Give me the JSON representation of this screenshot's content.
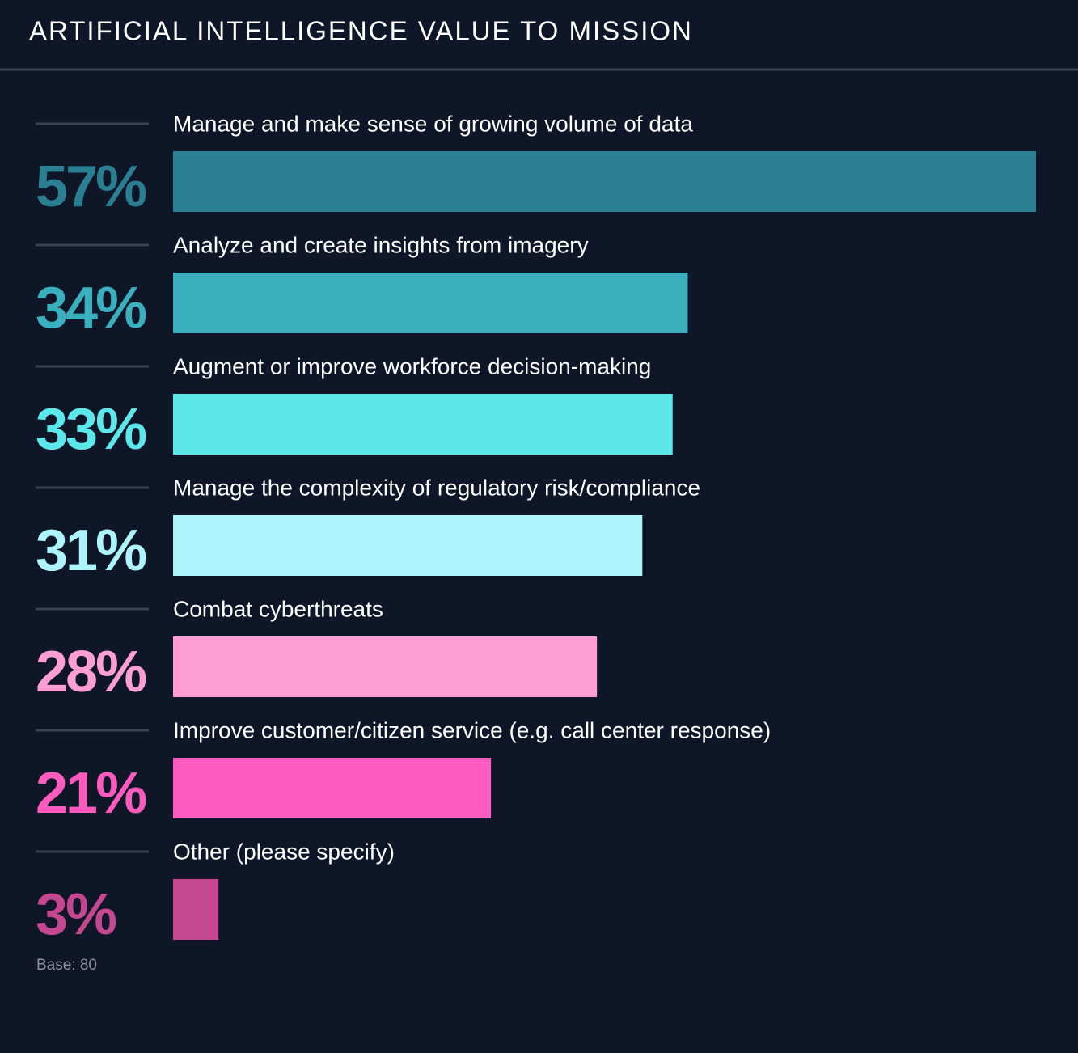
{
  "chart_data": {
    "type": "bar",
    "title": "ARTIFICIAL INTELLIGENCE VALUE TO MISSION",
    "categories": [
      "Manage and make sense of growing volume of data",
      "Analyze and create insights from imagery",
      "Augment or improve workforce decision-making",
      "Manage the complexity of regulatory risk/compliance",
      "Combat cyberthreats",
      "Improve customer/citizen service (e.g. call center response)",
      "Other (please specify)"
    ],
    "values": [
      57,
      34,
      33,
      31,
      28,
      21,
      3
    ],
    "value_labels": [
      "57%",
      "34%",
      "33%",
      "31%",
      "28%",
      "21%",
      "3%"
    ],
    "colors": [
      "#2a7f93",
      "#3aafbd",
      "#5ce8ea",
      "#adf4fc",
      "#ff9ed5",
      "#ff5bbf",
      "#c4478f"
    ],
    "note": "Base: 80"
  }
}
